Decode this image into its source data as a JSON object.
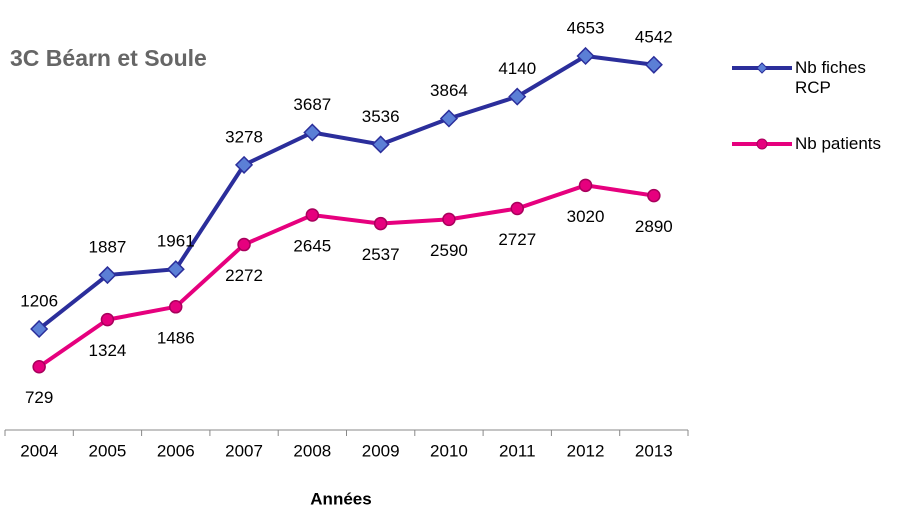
{
  "chart_data": {
    "type": "line",
    "title": "3C Béarn et Soule",
    "x_label": "Années",
    "categories": [
      "2004",
      "2005",
      "2006",
      "2007",
      "2008",
      "2009",
      "2010",
      "2011",
      "2012",
      "2013"
    ],
    "series": [
      {
        "name": "Nb fiches RCP",
        "color": "#2b2e9b",
        "marker_fill": "#5b7fd6",
        "values": [
          1206,
          1887,
          1961,
          3278,
          3687,
          3536,
          3864,
          4140,
          4653,
          4542
        ]
      },
      {
        "name": "Nb patients",
        "color": "#e6007e",
        "marker_fill": "#e6007e",
        "values": [
          729,
          1324,
          1486,
          2272,
          2645,
          2537,
          2590,
          2727,
          3020,
          2890
        ]
      }
    ],
    "ylim": [
      0,
      5000
    ],
    "legend": "right"
  }
}
